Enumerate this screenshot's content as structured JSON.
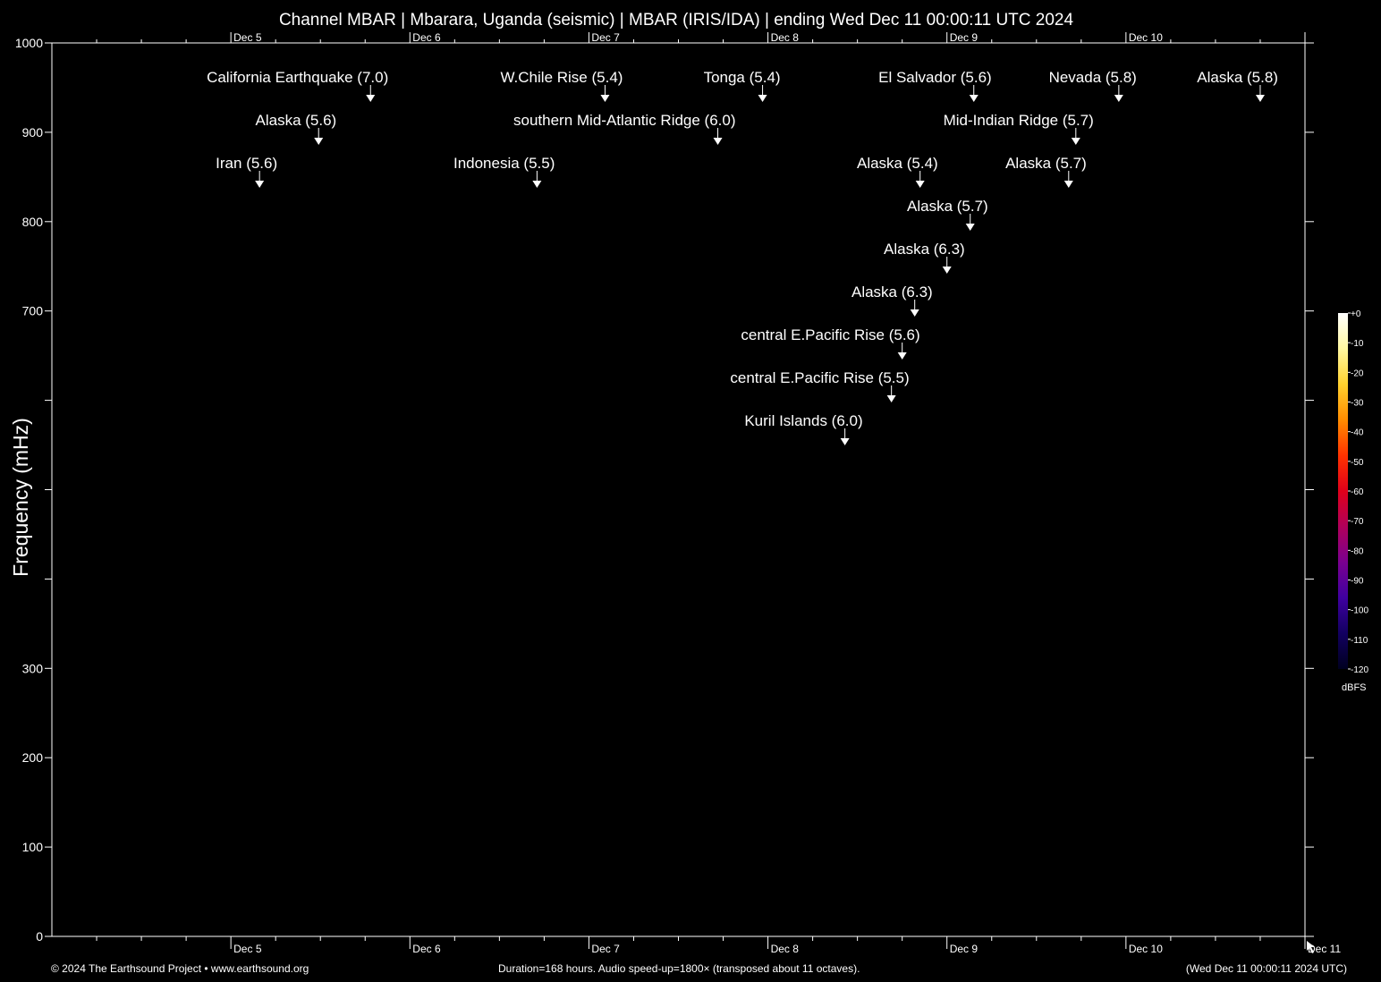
{
  "chart_data": {
    "type": "spectrogram",
    "title": "Channel MBAR | Mbarara, Uganda (seismic) | MBAR (IRIS/IDA) | ending Wed Dec 11 00:00:11 UTC 2024",
    "ylabel": "Frequency (mHz)",
    "ylim": [
      0,
      1000
    ],
    "y_ticks": [
      0,
      100,
      200,
      300,
      400,
      500,
      600,
      700,
      800,
      900,
      1000
    ],
    "y_tick_labels": [
      "0",
      "100",
      "200",
      "300",
      "",
      "",
      "",
      "700",
      "800",
      "900",
      "1000"
    ],
    "xlim_days": [
      4,
      11
    ],
    "x_ticks": [
      {
        "day": 5,
        "label": "Dec  5"
      },
      {
        "day": 6,
        "label": "Dec  6"
      },
      {
        "day": 7,
        "label": "Dec  7"
      },
      {
        "day": 8,
        "label": "Dec  8"
      },
      {
        "day": 9,
        "label": "Dec  9"
      },
      {
        "day": 10,
        "label": "Dec 10"
      },
      {
        "day": 11,
        "label": "Dec 11"
      }
    ],
    "events": [
      {
        "label": "California Earthquake (7.0)",
        "day": 5.78,
        "row": 0
      },
      {
        "label": "Alaska (5.6)",
        "day": 5.49,
        "row": 1
      },
      {
        "label": "Iran (5.6)",
        "day": 5.16,
        "row": 2
      },
      {
        "label": "W.Chile Rise (5.4)",
        "day": 7.09,
        "row": 0
      },
      {
        "label": "southern Mid-Atlantic Ridge (6.0)",
        "day": 7.72,
        "row": 1
      },
      {
        "label": "Indonesia (5.5)",
        "day": 6.71,
        "row": 2
      },
      {
        "label": "Tonga (5.4)",
        "day": 7.97,
        "row": 0
      },
      {
        "label": "El Salvador (5.6)",
        "day": 9.15,
        "row": 0
      },
      {
        "label": "Mid-Indian Ridge (5.7)",
        "day": 9.72,
        "row": 1
      },
      {
        "label": "Alaska (5.4)",
        "day": 8.85,
        "row": 2
      },
      {
        "label": "Alaska (5.7)",
        "day": 9.68,
        "row": 2
      },
      {
        "label": "Alaska (5.7)",
        "day": 9.13,
        "row": 3
      },
      {
        "label": "Alaska (6.3)",
        "day": 9.0,
        "row": 4
      },
      {
        "label": "Alaska (6.3)",
        "day": 8.82,
        "row": 5
      },
      {
        "label": "central E.Pacific Rise (5.6)",
        "day": 8.75,
        "row": 6
      },
      {
        "label": "central E.Pacific Rise (5.5)",
        "day": 8.69,
        "row": 7
      },
      {
        "label": "Kuril Islands (6.0)",
        "day": 8.43,
        "row": 8
      },
      {
        "label": "Nevada (5.8)",
        "day": 9.96,
        "row": 0
      },
      {
        "label": "Alaska (5.8)",
        "day": 10.75,
        "row": 0
      }
    ],
    "colorbar": {
      "ticks": [
        "+0",
        "-10",
        "-20",
        "-30",
        "-40",
        "-50",
        "-60",
        "-70",
        "-80",
        "-90",
        "-100",
        "-110",
        "-120"
      ],
      "unit": "dBFS",
      "colors": [
        "#ffffff",
        "#fff8a0",
        "#ffd12e",
        "#ff8c00",
        "#ff3300",
        "#e0001a",
        "#b0005a",
        "#7a0090",
        "#3f00a0",
        "#120060",
        "#000020"
      ]
    }
  },
  "footer": {
    "left": "© 2024 The Earthsound Project • www.earthsound.org",
    "center": "Duration=168 hours. Audio speed-up=1800× (transposed about 11 octaves).",
    "right": "(Wed Dec 11 00:00:11 2024 UTC)"
  }
}
